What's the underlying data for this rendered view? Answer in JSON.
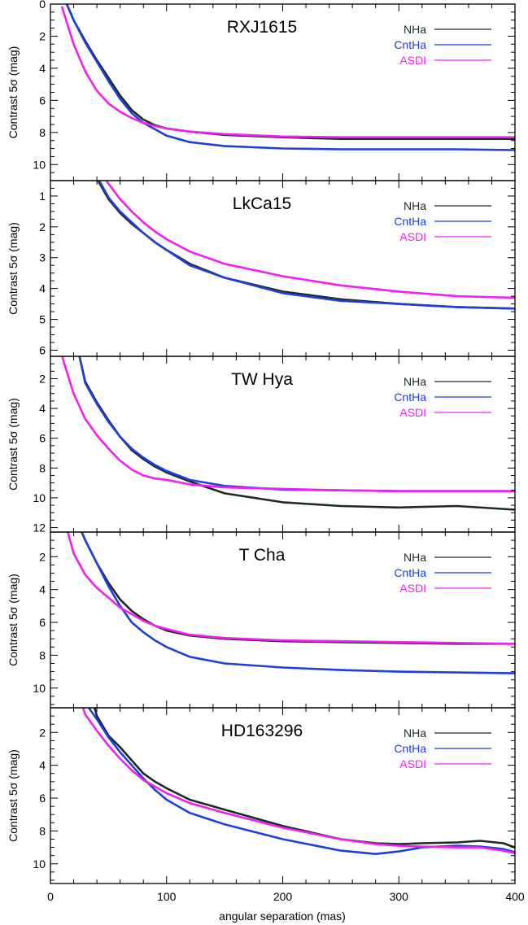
{
  "colors": {
    "NHa": "#1b2a24",
    "CntHa": "#1f3fd9",
    "ASDI": "#f21ef2"
  },
  "chart_data": [
    {
      "type": "line",
      "title": "RXJ1615",
      "xlabel": "",
      "ylabel": "Contrast 5σ (mag)",
      "xlim": [
        0,
        400
      ],
      "ylim": [
        0,
        11
      ],
      "y_inverted": true,
      "y_ticks": [
        "0",
        "2",
        "4",
        "6",
        "8",
        "10"
      ],
      "y_tick_values": [
        0,
        2,
        4,
        6,
        8,
        10
      ],
      "legend_position": "top-right",
      "series": [
        {
          "name": "NHa",
          "color": "#1b2a24",
          "x": [
            14,
            20,
            30,
            40,
            50,
            60,
            70,
            80,
            90,
            100,
            120,
            150,
            200,
            250,
            300,
            350,
            400
          ],
          "y": [
            0,
            1.0,
            2.3,
            3.5,
            4.6,
            5.7,
            6.6,
            7.2,
            7.55,
            7.75,
            7.95,
            8.15,
            8.3,
            8.4,
            8.4,
            8.4,
            8.4
          ]
        },
        {
          "name": "CntHa",
          "color": "#1f3fd9",
          "x": [
            14,
            20,
            30,
            40,
            50,
            60,
            70,
            80,
            90,
            100,
            120,
            150,
            200,
            250,
            300,
            350,
            400
          ],
          "y": [
            0,
            1.0,
            2.4,
            3.6,
            4.8,
            5.9,
            6.8,
            7.4,
            7.8,
            8.2,
            8.6,
            8.85,
            9.0,
            9.05,
            9.05,
            9.05,
            9.1
          ]
        },
        {
          "name": "ASDI",
          "color": "#f21ef2",
          "x": [
            10,
            20,
            30,
            40,
            50,
            60,
            70,
            80,
            90,
            100,
            120,
            150,
            200,
            250,
            300,
            350,
            400
          ],
          "y": [
            0.2,
            2.5,
            4.2,
            5.4,
            6.2,
            6.7,
            7.1,
            7.4,
            7.6,
            7.75,
            7.95,
            8.1,
            8.25,
            8.3,
            8.3,
            8.3,
            8.3
          ]
        }
      ]
    },
    {
      "type": "line",
      "title": "LkCa15",
      "xlabel": "",
      "ylabel": "Contrast 5σ (mag)",
      "xlim": [
        0,
        400
      ],
      "ylim": [
        0.5,
        6.2
      ],
      "y_inverted": true,
      "y_ticks": [
        "1",
        "2",
        "3",
        "4",
        "5",
        "6"
      ],
      "y_tick_values": [
        1,
        2,
        3,
        4,
        5,
        6
      ],
      "legend_position": "top-right",
      "series": [
        {
          "name": "NHa",
          "color": "#1b2a24",
          "x": [
            41,
            50,
            60,
            70,
            80,
            90,
            100,
            120,
            150,
            200,
            250,
            300,
            350,
            400
          ],
          "y": [
            0.5,
            1.1,
            1.55,
            1.9,
            2.2,
            2.5,
            2.75,
            3.2,
            3.65,
            4.1,
            4.35,
            4.5,
            4.6,
            4.65
          ]
        },
        {
          "name": "CntHa",
          "color": "#1f3fd9",
          "x": [
            42,
            50,
            60,
            70,
            80,
            90,
            100,
            120,
            150,
            200,
            250,
            300,
            350,
            400
          ],
          "y": [
            0.5,
            1.05,
            1.5,
            1.85,
            2.2,
            2.5,
            2.75,
            3.25,
            3.65,
            4.15,
            4.4,
            4.5,
            4.6,
            4.65
          ]
        },
        {
          "name": "ASDI",
          "color": "#f21ef2",
          "x": [
            48,
            60,
            70,
            80,
            90,
            100,
            120,
            150,
            200,
            250,
            300,
            350,
            400
          ],
          "y": [
            0.5,
            1.1,
            1.5,
            1.85,
            2.15,
            2.4,
            2.8,
            3.2,
            3.6,
            3.9,
            4.1,
            4.25,
            4.3
          ]
        }
      ]
    },
    {
      "type": "line",
      "title": "TW Hya",
      "xlabel": "",
      "ylabel": "Contrast 5σ (mag)",
      "xlim": [
        0,
        400
      ],
      "ylim": [
        0.5,
        12.3
      ],
      "y_inverted": true,
      "y_ticks": [
        "2",
        "4",
        "6",
        "8",
        "10",
        "12"
      ],
      "y_tick_values": [
        2,
        4,
        6,
        8,
        10,
        12
      ],
      "legend_position": "top-right",
      "series": [
        {
          "name": "NHa",
          "color": "#1b2a24",
          "x": [
            25,
            30,
            40,
            50,
            60,
            70,
            80,
            90,
            100,
            120,
            150,
            200,
            250,
            300,
            350,
            400
          ],
          "y": [
            0.5,
            2.2,
            3.6,
            4.8,
            5.9,
            6.8,
            7.4,
            7.9,
            8.3,
            8.9,
            9.7,
            10.3,
            10.55,
            10.65,
            10.55,
            10.8
          ]
        },
        {
          "name": "CntHa",
          "color": "#1f3fd9",
          "x": [
            25,
            30,
            40,
            50,
            60,
            70,
            80,
            90,
            100,
            120,
            150,
            200,
            250,
            300,
            350,
            400
          ],
          "y": [
            0.5,
            2.3,
            3.7,
            4.9,
            5.9,
            6.7,
            7.3,
            7.8,
            8.2,
            8.8,
            9.2,
            9.45,
            9.5,
            9.55,
            9.55,
            9.55
          ]
        },
        {
          "name": "ASDI",
          "color": "#f21ef2",
          "x": [
            10,
            20,
            30,
            40,
            50,
            60,
            70,
            80,
            90,
            100,
            120,
            150,
            200,
            250,
            300,
            350,
            400
          ],
          "y": [
            0.5,
            3.0,
            4.7,
            5.8,
            6.7,
            7.5,
            8.1,
            8.5,
            8.7,
            8.8,
            9.1,
            9.3,
            9.4,
            9.5,
            9.55,
            9.55,
            9.55
          ]
        }
      ]
    },
    {
      "type": "line",
      "title": "T Cha",
      "xlabel": "",
      "ylabel": "Contrast 5σ (mag)",
      "xlim": [
        0,
        400
      ],
      "ylim": [
        0.5,
        11.2
      ],
      "y_inverted": true,
      "y_ticks": [
        "2",
        "4",
        "6",
        "8",
        "10"
      ],
      "y_tick_values": [
        2,
        4,
        6,
        8,
        10
      ],
      "legend_position": "top-right",
      "series": [
        {
          "name": "NHa",
          "color": "#1b2a24",
          "x": [
            27,
            30,
            40,
            50,
            60,
            70,
            80,
            90,
            100,
            120,
            150,
            200,
            250,
            300,
            350,
            400
          ],
          "y": [
            0.5,
            1.0,
            2.4,
            3.6,
            4.6,
            5.3,
            5.8,
            6.2,
            6.5,
            6.8,
            7.0,
            7.15,
            7.2,
            7.25,
            7.3,
            7.3
          ]
        },
        {
          "name": "CntHa",
          "color": "#1f3fd9",
          "x": [
            27,
            30,
            40,
            50,
            60,
            70,
            80,
            90,
            100,
            120,
            150,
            200,
            250,
            300,
            350,
            400
          ],
          "y": [
            0.5,
            1.0,
            2.4,
            3.8,
            5.0,
            6.0,
            6.6,
            7.1,
            7.5,
            8.1,
            8.5,
            8.75,
            8.9,
            9.0,
            9.05,
            9.1
          ]
        },
        {
          "name": "ASDI",
          "color": "#f21ef2",
          "x": [
            15,
            20,
            30,
            40,
            50,
            60,
            70,
            80,
            90,
            100,
            120,
            150,
            200,
            250,
            300,
            350,
            400
          ],
          "y": [
            0.5,
            1.8,
            3.1,
            3.9,
            4.5,
            5.1,
            5.5,
            5.9,
            6.2,
            6.4,
            6.75,
            6.95,
            7.1,
            7.15,
            7.2,
            7.25,
            7.3
          ]
        }
      ]
    },
    {
      "type": "line",
      "title": "HD163296",
      "xlabel": "angular separation (mas)",
      "ylabel": "Contrast 5σ (mag)",
      "xlim": [
        0,
        400
      ],
      "ylim": [
        0.5,
        11.2
      ],
      "y_inverted": true,
      "y_ticks": [
        "2",
        "4",
        "6",
        "8",
        "10"
      ],
      "y_tick_values": [
        2,
        4,
        6,
        8,
        10
      ],
      "x_ticks": [
        "0",
        "100",
        "200",
        "300",
        "400"
      ],
      "x_tick_values": [
        0,
        100,
        200,
        300,
        400
      ],
      "legend_position": "top-right",
      "series": [
        {
          "name": "NHa",
          "color": "#1b2a24",
          "x": [
            38,
            40,
            50,
            60,
            70,
            80,
            90,
            100,
            120,
            150,
            200,
            250,
            280,
            300,
            320,
            350,
            370,
            390,
            400
          ],
          "y": [
            0.5,
            1.0,
            2.2,
            2.9,
            3.7,
            4.5,
            5.0,
            5.4,
            6.1,
            6.7,
            7.7,
            8.5,
            8.75,
            8.8,
            8.75,
            8.7,
            8.6,
            8.75,
            9.0
          ]
        },
        {
          "name": "CntHa",
          "color": "#1f3fd9",
          "x": [
            33,
            40,
            50,
            60,
            70,
            80,
            90,
            100,
            120,
            150,
            200,
            250,
            280,
            300,
            320,
            350,
            370,
            390,
            400
          ],
          "y": [
            0.5,
            1.2,
            2.3,
            3.2,
            4.0,
            4.8,
            5.5,
            6.1,
            6.9,
            7.6,
            8.5,
            9.2,
            9.4,
            9.25,
            9.0,
            8.9,
            8.95,
            9.1,
            9.3
          ]
        },
        {
          "name": "ASDI",
          "color": "#f21ef2",
          "x": [
            28,
            30,
            40,
            50,
            60,
            70,
            80,
            90,
            100,
            120,
            150,
            200,
            250,
            280,
            300,
            320,
            350,
            370,
            390,
            400
          ],
          "y": [
            0.5,
            0.9,
            1.9,
            2.8,
            3.6,
            4.3,
            4.9,
            5.3,
            5.7,
            6.3,
            6.9,
            7.8,
            8.5,
            8.8,
            8.9,
            8.95,
            9.0,
            9.0,
            9.2,
            9.35
          ]
        }
      ]
    }
  ]
}
